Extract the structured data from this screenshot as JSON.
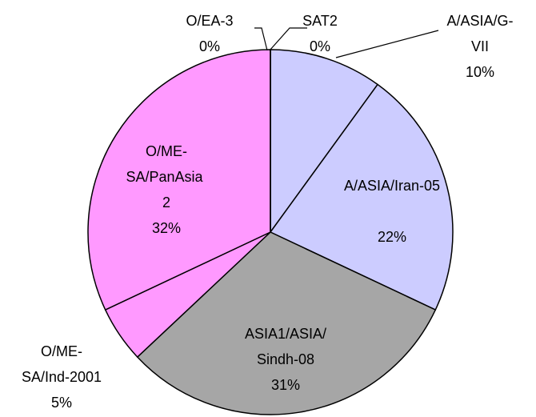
{
  "chart_data": {
    "type": "pie",
    "categories": [
      "SAT2",
      "A/ASIA/G-VII",
      "A/ASIA/Iran-05",
      "ASIA1/ASIA/Sindh-08",
      "O/ME-SA/Ind-2001",
      "O/ME-SA/PanAsia 2",
      "O/EA-3"
    ],
    "values": [
      0,
      10,
      22,
      31,
      5,
      32,
      0
    ],
    "value_labels": [
      "0%",
      "10%",
      "22%",
      "31%",
      "5%",
      "32%",
      "0%"
    ],
    "colors": [
      "#ffffff",
      "#ccccff",
      "#ccccff",
      "#a6a6a6",
      "#ff99ff",
      "#ff99ff",
      "#ffffff"
    ]
  }
}
